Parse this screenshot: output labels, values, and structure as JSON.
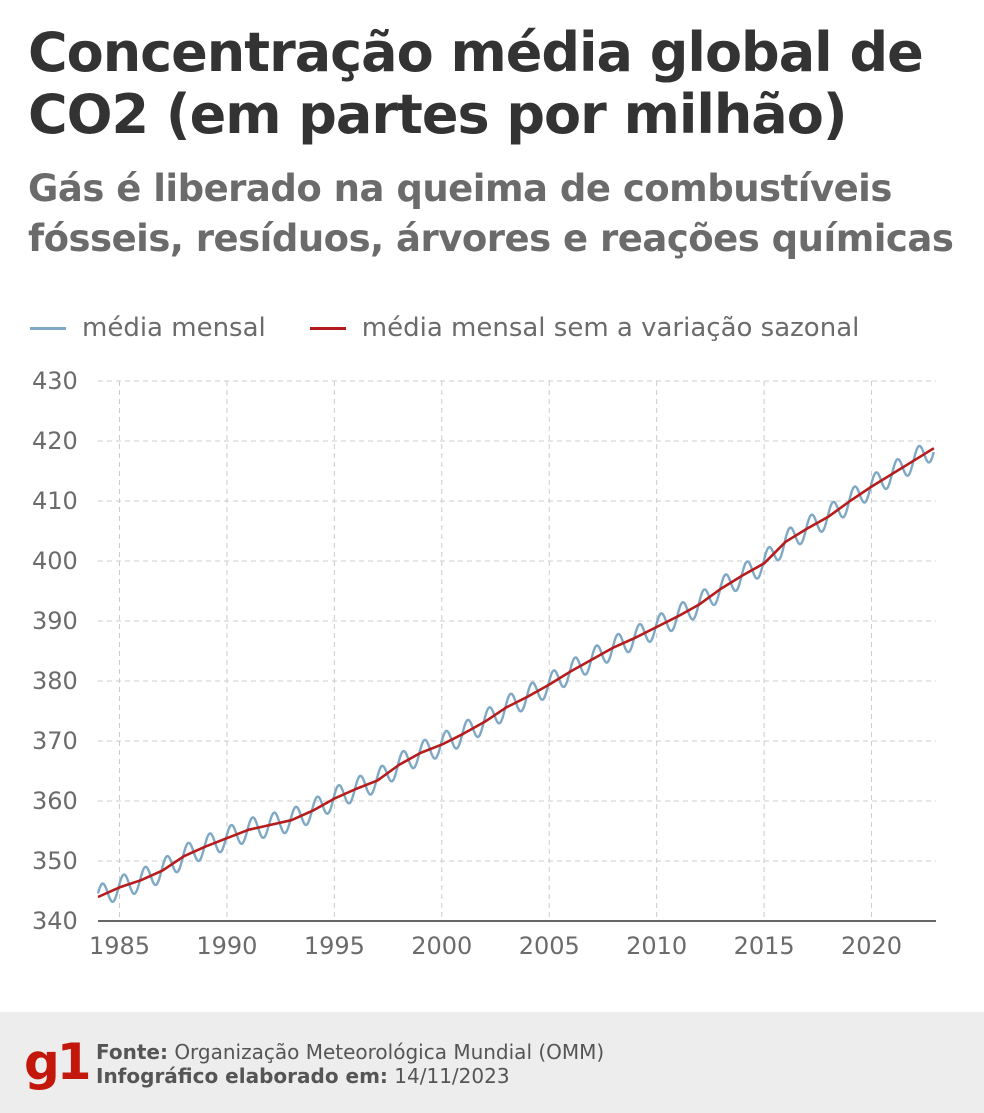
{
  "header": {
    "title": "Concentração média global de CO2 (em partes por milhão)",
    "subtitle": "Gás é liberado na queima de combustíveis fósseis, resíduos, árvores e reações químicas"
  },
  "colors": {
    "monthly": "#7fa8c4",
    "deseasonalized": "#b71c1c",
    "grid": "#cccccc"
  },
  "chart_data": {
    "type": "line",
    "title": "Concentração média global de CO2 (em partes por milhão)",
    "xlabel": "",
    "ylabel": "",
    "xlim": [
      1984.0,
      2023.0
    ],
    "ylim": [
      340,
      430
    ],
    "grid": true,
    "legend_position": "top-left",
    "x_ticks": [
      1985,
      1990,
      1995,
      2000,
      2005,
      2010,
      2015,
      2020
    ],
    "y_ticks": [
      340,
      350,
      360,
      370,
      380,
      390,
      400,
      410,
      420,
      430
    ],
    "series": [
      {
        "name": "média mensal",
        "style": "seasonal oscillation, amplitude about 4 ppm",
        "x": [
          1984.0,
          1985,
          1986,
          1987,
          1988,
          1989,
          1990,
          1991,
          1992,
          1993,
          1994,
          1995,
          1996,
          1997,
          1998,
          1999,
          2000,
          2001,
          2002,
          2003,
          2004,
          2005,
          2006,
          2007,
          2008,
          2009,
          2010,
          2011,
          2012,
          2013,
          2014,
          2015,
          2016,
          2017,
          2018,
          2019,
          2020,
          2021,
          2022,
          2022.9
        ],
        "y": [
          344.0,
          345.6,
          346.8,
          348.4,
          350.8,
          352.4,
          353.8,
          355.2,
          356.0,
          356.8,
          358.4,
          360.4,
          362.0,
          363.4,
          366.0,
          368.0,
          369.4,
          371.2,
          373.2,
          375.6,
          377.4,
          379.4,
          381.6,
          383.6,
          385.6,
          387.2,
          389.0,
          390.8,
          392.8,
          395.4,
          397.6,
          399.6,
          403.2,
          405.4,
          407.4,
          410.0,
          412.4,
          414.6,
          416.8,
          418.8
        ]
      },
      {
        "name": "média mensal sem a variação sazonal",
        "x": [
          1984.0,
          1985,
          1986,
          1987,
          1988,
          1989,
          1990,
          1991,
          1992,
          1993,
          1994,
          1995,
          1996,
          1997,
          1998,
          1999,
          2000,
          2001,
          2002,
          2003,
          2004,
          2005,
          2006,
          2007,
          2008,
          2009,
          2010,
          2011,
          2012,
          2013,
          2014,
          2015,
          2016,
          2017,
          2018,
          2019,
          2020,
          2021,
          2022,
          2022.9
        ],
        "y": [
          344.0,
          345.6,
          346.8,
          348.4,
          350.8,
          352.4,
          353.8,
          355.2,
          356.0,
          356.8,
          358.4,
          360.4,
          362.0,
          363.4,
          366.0,
          368.0,
          369.4,
          371.2,
          373.2,
          375.6,
          377.4,
          379.4,
          381.6,
          383.6,
          385.6,
          387.2,
          389.0,
          390.8,
          392.8,
          395.4,
          397.6,
          399.6,
          403.2,
          405.4,
          407.4,
          410.0,
          412.4,
          414.6,
          416.8,
          418.8
        ]
      }
    ]
  },
  "footer": {
    "logo": "g1",
    "source_label": "Fonte:",
    "source_value": "Organização Meteorológica Mundial (OMM)",
    "date_label": "Infográfico elaborado em:",
    "date_value": "14/11/2023"
  }
}
